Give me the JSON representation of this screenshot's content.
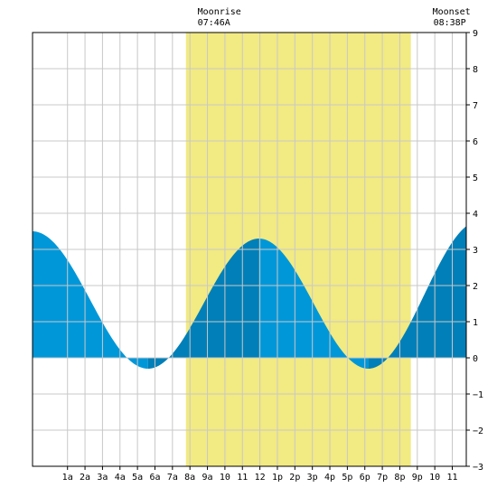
{
  "chart_data": {
    "type": "area",
    "title": "",
    "xlabel": "",
    "ylabel": "",
    "x_unit": "hour of day",
    "xlim": [
      -1,
      23.8
    ],
    "ylim": [
      -3,
      9
    ],
    "grid": true,
    "x_tick_labels": [
      {
        "hour": 1,
        "label": "1a"
      },
      {
        "hour": 2,
        "label": "2a"
      },
      {
        "hour": 3,
        "label": "3a"
      },
      {
        "hour": 4,
        "label": "4a"
      },
      {
        "hour": 5,
        "label": "5a"
      },
      {
        "hour": 6,
        "label": "6a"
      },
      {
        "hour": 7,
        "label": "7a"
      },
      {
        "hour": 8,
        "label": "8a"
      },
      {
        "hour": 9,
        "label": "9a"
      },
      {
        "hour": 10,
        "label": "10"
      },
      {
        "hour": 11,
        "label": "11"
      },
      {
        "hour": 12,
        "label": "12"
      },
      {
        "hour": 13,
        "label": "1p"
      },
      {
        "hour": 14,
        "label": "2p"
      },
      {
        "hour": 15,
        "label": "3p"
      },
      {
        "hour": 16,
        "label": "4p"
      },
      {
        "hour": 17,
        "label": "5p"
      },
      {
        "hour": 18,
        "label": "6p"
      },
      {
        "hour": 19,
        "label": "7p"
      },
      {
        "hour": 20,
        "label": "8p"
      },
      {
        "hour": 21,
        "label": "9p"
      },
      {
        "hour": 22,
        "label": "10"
      },
      {
        "hour": 23,
        "label": "11"
      }
    ],
    "y_ticks": [
      -3,
      -2,
      -1,
      0,
      1,
      2,
      3,
      4,
      5,
      6,
      7,
      8,
      9
    ],
    "moonrise": {
      "hour": 7.77,
      "title": "Moonrise",
      "time": "07:46A"
    },
    "moonset": {
      "hour": 20.63,
      "title": "Moonset",
      "time": "08:38P"
    },
    "tide_extrema": [
      {
        "hour": -1.0,
        "height": 3.5
      },
      {
        "hour": 5.6,
        "height": -0.3
      },
      {
        "hour": 11.95,
        "height": 3.3
      },
      {
        "hour": 18.2,
        "height": -0.3
      },
      {
        "hour": 24.6,
        "height": 3.8
      }
    ],
    "colors": {
      "moon_band": "#f2ea82",
      "water_light": "#0097d9",
      "water_dark": "#007fb8",
      "grid": "#c8c8c8",
      "frame": "#000000"
    }
  }
}
